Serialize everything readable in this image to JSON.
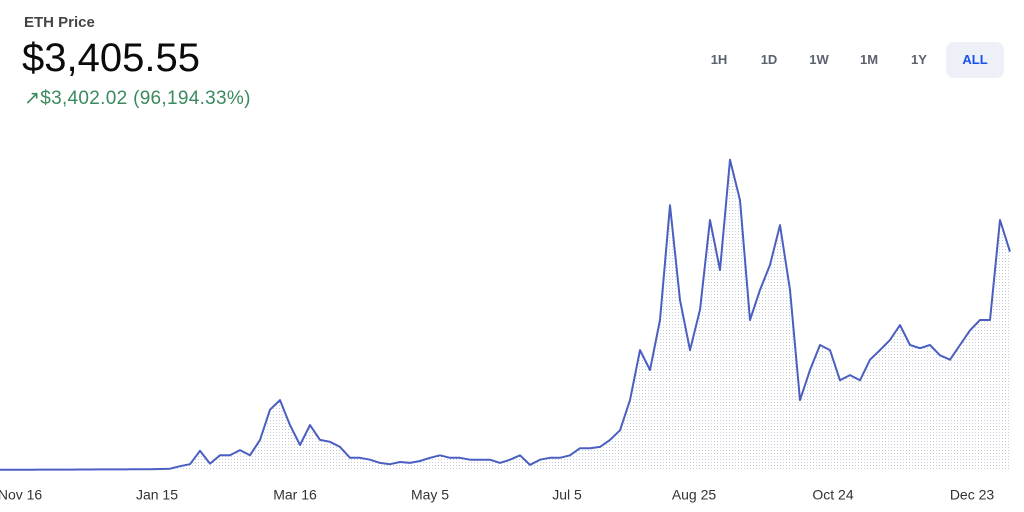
{
  "header": {
    "label": "ETH Price",
    "price": "$3,405.55",
    "change": "$3,402.02",
    "change_pct": "(96,194.33%)"
  },
  "range_buttons": {
    "options": [
      "1H",
      "1D",
      "1W",
      "1M",
      "1Y",
      "ALL"
    ],
    "active": 5
  },
  "chart_data": {
    "type": "area",
    "color": "#4a5fc1",
    "values": [
      4,
      4,
      5,
      5,
      6,
      6,
      7,
      7,
      8,
      8,
      9,
      10,
      10,
      11,
      12,
      13,
      15,
      20,
      60,
      90,
      300,
      100,
      230,
      230,
      310,
      230,
      470,
      940,
      1090,
      700,
      390,
      700,
      470,
      440,
      360,
      190,
      190,
      160,
      110,
      90,
      125,
      110,
      140,
      190,
      230,
      190,
      190,
      160,
      160,
      160,
      110,
      160,
      230,
      80,
      160,
      190,
      190,
      230,
      340,
      340,
      360,
      470,
      620,
      1090,
      1870,
      1560,
      2340,
      4130,
      2650,
      1870,
      2500,
      3900,
      3120,
      4840,
      4210,
      2340,
      2810,
      3200,
      3820,
      2810,
      1090,
      1560,
      1950,
      1870,
      1400,
      1480,
      1400,
      1720,
      1870,
      2030,
      2260,
      1950,
      1900,
      1950,
      1790,
      1720,
      1950,
      2180,
      2340,
      2340,
      3900,
      3405.55
    ],
    "xlim": [
      0,
      101
    ],
    "ylim": [
      0,
      5000
    ],
    "xticks": [
      {
        "value": 2,
        "label": "Nov 16"
      },
      {
        "value": 15.7,
        "label": "Jan 15"
      },
      {
        "value": 29.5,
        "label": "Mar 16"
      },
      {
        "value": 43,
        "label": "May 5"
      },
      {
        "value": 56.7,
        "label": "Jul 5"
      },
      {
        "value": 69.4,
        "label": "Aug 25"
      },
      {
        "value": 83.3,
        "label": "Oct 24"
      },
      {
        "value": 97.2,
        "label": "Dec 23"
      }
    ]
  }
}
